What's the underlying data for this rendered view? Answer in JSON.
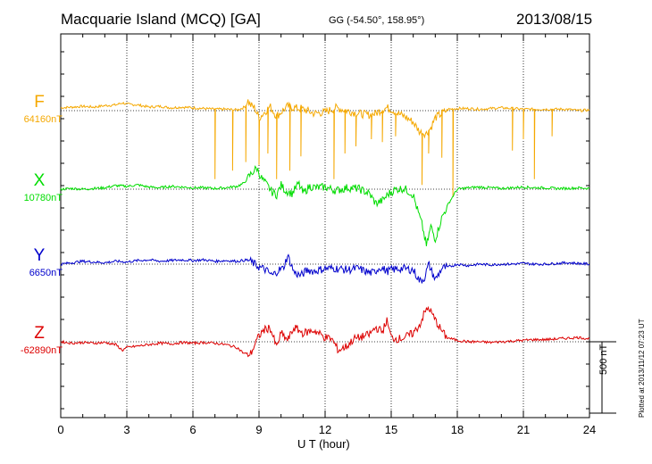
{
  "header": {
    "station": "Macquarie Island (MCQ)  [GA]",
    "coords": "GG (-54.50°, 158.95°)",
    "date": "2013/08/15"
  },
  "footer": {
    "plotted": "Plotted at 2013/11/12 07:23 UT"
  },
  "colors": {
    "F": "#f5a800",
    "X": "#00dd00",
    "Y": "#0000cc",
    "Z": "#dd0000"
  },
  "chart_data": {
    "type": "line",
    "xlabel": "U T (hour)",
    "xlim": [
      0,
      24
    ],
    "xticks": [
      "0",
      "3",
      "6",
      "9",
      "12",
      "15",
      "18",
      "21",
      "24"
    ],
    "grid": true,
    "scale_bar": {
      "value_nT": 500,
      "label": "500 nT"
    },
    "series": [
      {
        "name": "F",
        "baseline_label": "64160nT",
        "baseline_nT": 64160,
        "x": [
          0,
          0.5,
          1,
          1.5,
          2,
          2.5,
          2.8,
          3,
          3.5,
          4,
          4.5,
          5,
          5.5,
          6,
          6.5,
          7,
          7.5,
          8,
          8.2,
          8.4,
          8.5,
          8.6,
          8.8,
          9,
          9.2,
          9.5,
          9.8,
          10,
          10.3,
          10.6,
          11,
          11.5,
          12,
          12.5,
          13,
          13.5,
          14,
          14.3,
          14.6,
          14.8,
          15,
          15.3,
          15.6,
          16,
          16.3,
          16.6,
          16.8,
          17,
          17.3,
          17.6,
          18,
          18.5,
          19,
          19.5,
          20,
          20.5,
          21,
          21.5,
          22,
          22.5,
          23,
          23.5,
          24
        ],
        "y": [
          20,
          25,
          30,
          25,
          35,
          40,
          55,
          45,
          40,
          25,
          30,
          20,
          25,
          20,
          15,
          10,
          10,
          5,
          15,
          30,
          70,
          40,
          20,
          -50,
          -20,
          30,
          -40,
          -10,
          30,
          20,
          10,
          -20,
          -10,
          20,
          0,
          -20,
          -30,
          -20,
          10,
          20,
          10,
          -20,
          -40,
          -80,
          -150,
          -160,
          -120,
          -50,
          -20,
          10,
          15,
          15,
          10,
          15,
          20,
          15,
          10,
          10,
          10,
          10,
          10,
          0,
          5
        ],
        "dips": [
          {
            "x": 7.0,
            "depth": -480
          },
          {
            "x": 7.8,
            "depth": -420
          },
          {
            "x": 8.4,
            "depth": -360
          },
          {
            "x": 9.0,
            "depth": -380
          },
          {
            "x": 9.4,
            "depth": -300
          },
          {
            "x": 9.8,
            "depth": -480
          },
          {
            "x": 10.4,
            "depth": -420
          },
          {
            "x": 10.9,
            "depth": -320
          },
          {
            "x": 12.4,
            "depth": -480
          },
          {
            "x": 12.9,
            "depth": -300
          },
          {
            "x": 13.4,
            "depth": -250
          },
          {
            "x": 14.1,
            "depth": -200
          },
          {
            "x": 14.6,
            "depth": -220
          },
          {
            "x": 15.2,
            "depth": -180
          },
          {
            "x": 16.4,
            "depth": -520
          },
          {
            "x": 16.7,
            "depth": -300
          },
          {
            "x": 17.3,
            "depth": -330
          },
          {
            "x": 17.8,
            "depth": -600
          },
          {
            "x": 20.5,
            "depth": -280
          },
          {
            "x": 21.0,
            "depth": -200
          },
          {
            "x": 21.5,
            "depth": -480
          },
          {
            "x": 22.3,
            "depth": -180
          }
        ]
      },
      {
        "name": "X",
        "baseline_label": "10780nT",
        "baseline_nT": 10780,
        "x": [
          0,
          0.5,
          1,
          1.5,
          2,
          2.5,
          3,
          3.5,
          4,
          4.5,
          5,
          5.5,
          6,
          6.5,
          7,
          7.5,
          8,
          8.3,
          8.6,
          8.9,
          9.1,
          9.3,
          9.6,
          9.8,
          10,
          10.2,
          10.5,
          10.8,
          11,
          11.3,
          11.6,
          12,
          12.5,
          13,
          13.5,
          14,
          14.3,
          14.6,
          14.9,
          15.2,
          15.6,
          16,
          16.2,
          16.4,
          16.6,
          16.8,
          17,
          17.3,
          17.6,
          18,
          18.5,
          19,
          19.5,
          20,
          20.5,
          21,
          21.5,
          22,
          22.5,
          23,
          23.5,
          24
        ],
        "y": [
          0,
          5,
          0,
          5,
          10,
          25,
          20,
          30,
          15,
          10,
          20,
          15,
          10,
          10,
          5,
          10,
          20,
          40,
          100,
          150,
          80,
          40,
          -20,
          -40,
          30,
          -10,
          -30,
          40,
          -30,
          20,
          10,
          15,
          -10,
          10,
          5,
          -30,
          -100,
          -80,
          -30,
          0,
          5,
          -40,
          -150,
          -250,
          -400,
          -260,
          -350,
          -200,
          -100,
          0,
          10,
          15,
          10,
          5,
          10,
          15,
          10,
          10,
          5,
          5,
          10,
          5
        ],
        "dips": []
      },
      {
        "name": "Y",
        "baseline_label": "6650nT",
        "baseline_nT": 6650,
        "x": [
          0,
          0.5,
          1,
          1.5,
          2,
          2.5,
          3,
          3.5,
          4,
          4.5,
          5,
          5.5,
          6,
          6.5,
          7,
          7.5,
          8,
          8.5,
          9,
          9.3,
          9.6,
          9.9,
          10.1,
          10.3,
          10.6,
          10.9,
          11.2,
          11.5,
          12,
          12.5,
          13,
          13.5,
          14,
          14.2,
          14.5,
          14.8,
          15,
          15.5,
          16,
          16.3,
          16.5,
          16.7,
          17,
          17.3,
          17.6,
          18,
          18.5,
          19,
          19.5,
          20,
          20.5,
          21,
          21.5,
          22,
          22.5,
          23,
          23.5,
          24
        ],
        "y": [
          0,
          10,
          20,
          15,
          10,
          20,
          15,
          25,
          30,
          20,
          25,
          30,
          25,
          30,
          20,
          25,
          20,
          30,
          -20,
          -40,
          -80,
          -40,
          -30,
          60,
          -60,
          -80,
          -40,
          -50,
          -30,
          -30,
          -40,
          -30,
          -60,
          -60,
          -20,
          -50,
          -40,
          -30,
          -40,
          -120,
          -100,
          0,
          -110,
          -30,
          -20,
          0,
          -10,
          0,
          -5,
          0,
          0,
          5,
          0,
          0,
          5,
          10,
          5,
          0
        ],
        "dips": []
      },
      {
        "name": "Z",
        "baseline_label": "-62890nT",
        "baseline_nT": -62890,
        "x": [
          0,
          0.5,
          1,
          1.5,
          2,
          2.5,
          2.8,
          3,
          3.5,
          4,
          4.5,
          5,
          5.5,
          6,
          6.5,
          7,
          7.5,
          8,
          8.3,
          8.6,
          9,
          9.2,
          9.5,
          9.8,
          10,
          10.3,
          10.6,
          11,
          11.5,
          12,
          12.3,
          12.6,
          13,
          13.3,
          13.6,
          14,
          14.3,
          14.6,
          14.8,
          15,
          15.3,
          15.6,
          16,
          16.3,
          16.5,
          16.7,
          16.9,
          17.2,
          17.5,
          18,
          18.5,
          19,
          19.5,
          20,
          20.5,
          21,
          21.5,
          22,
          22.5,
          23,
          23.5,
          24
        ],
        "y": [
          0,
          -10,
          -5,
          -10,
          -5,
          -20,
          -60,
          -40,
          -30,
          -20,
          -10,
          -15,
          -5,
          -10,
          -5,
          -10,
          -20,
          -40,
          -80,
          -90,
          40,
          80,
          100,
          -40,
          60,
          10,
          100,
          60,
          80,
          30,
          20,
          -60,
          -30,
          20,
          30,
          50,
          100,
          70,
          150,
          30,
          20,
          30,
          60,
          120,
          200,
          240,
          180,
          100,
          30,
          10,
          0,
          0,
          -5,
          0,
          5,
          10,
          15,
          15,
          20,
          25,
          30,
          20
        ],
        "dips": []
      }
    ]
  }
}
